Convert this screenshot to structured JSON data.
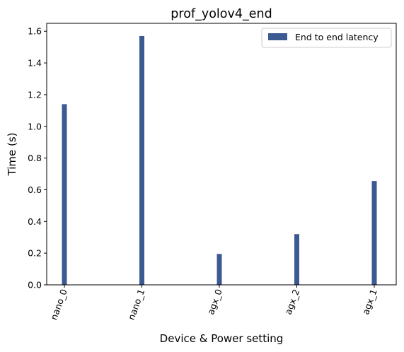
{
  "chart_data": {
    "type": "bar",
    "title": "prof_yolov4_end",
    "xlabel": "Device & Power setting",
    "ylabel": "Time (s)",
    "categories": [
      "nano_0",
      "nano_1",
      "agx_0",
      "agx_2",
      "agx_1"
    ],
    "series": [
      {
        "name": "End to end latency",
        "values": [
          1.14,
          1.57,
          0.195,
          0.32,
          0.655
        ],
        "color": "#3c5a92"
      }
    ],
    "ylim": [
      0,
      1.65
    ],
    "yticks": [
      0.0,
      0.2,
      0.4,
      0.6,
      0.8,
      1.0,
      1.2,
      1.4,
      1.6
    ],
    "ytick_labels": [
      "0.0",
      "0.2",
      "0.4",
      "0.6",
      "0.8",
      "1.0",
      "1.2",
      "1.4",
      "1.6"
    ],
    "xtick_rotation": 70,
    "grid": false,
    "legend_position": "top-right"
  }
}
